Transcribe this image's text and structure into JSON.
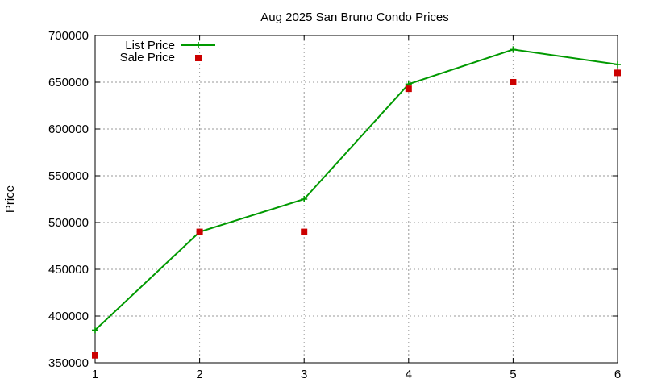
{
  "chart_data": {
    "type": "line",
    "title": "Aug 2025 San Bruno Condo Prices",
    "xlabel": "",
    "ylabel": "Price",
    "x": [
      1,
      2,
      3,
      4,
      5,
      6
    ],
    "xlim": [
      1,
      6
    ],
    "ylim": [
      350000,
      700000
    ],
    "yticks": [
      350000,
      400000,
      450000,
      500000,
      550000,
      600000,
      650000,
      700000
    ],
    "grid": true,
    "legend_position": "top-left",
    "series": [
      {
        "name": "List Price",
        "style": "line-with-plus-markers",
        "color": "#009900",
        "values": [
          385000,
          490000,
          525000,
          648000,
          685000,
          669000
        ]
      },
      {
        "name": "Sale Price",
        "style": "square-markers",
        "color": "#cc0000",
        "values": [
          358000,
          490000,
          490000,
          643000,
          650000,
          660000
        ]
      }
    ]
  }
}
